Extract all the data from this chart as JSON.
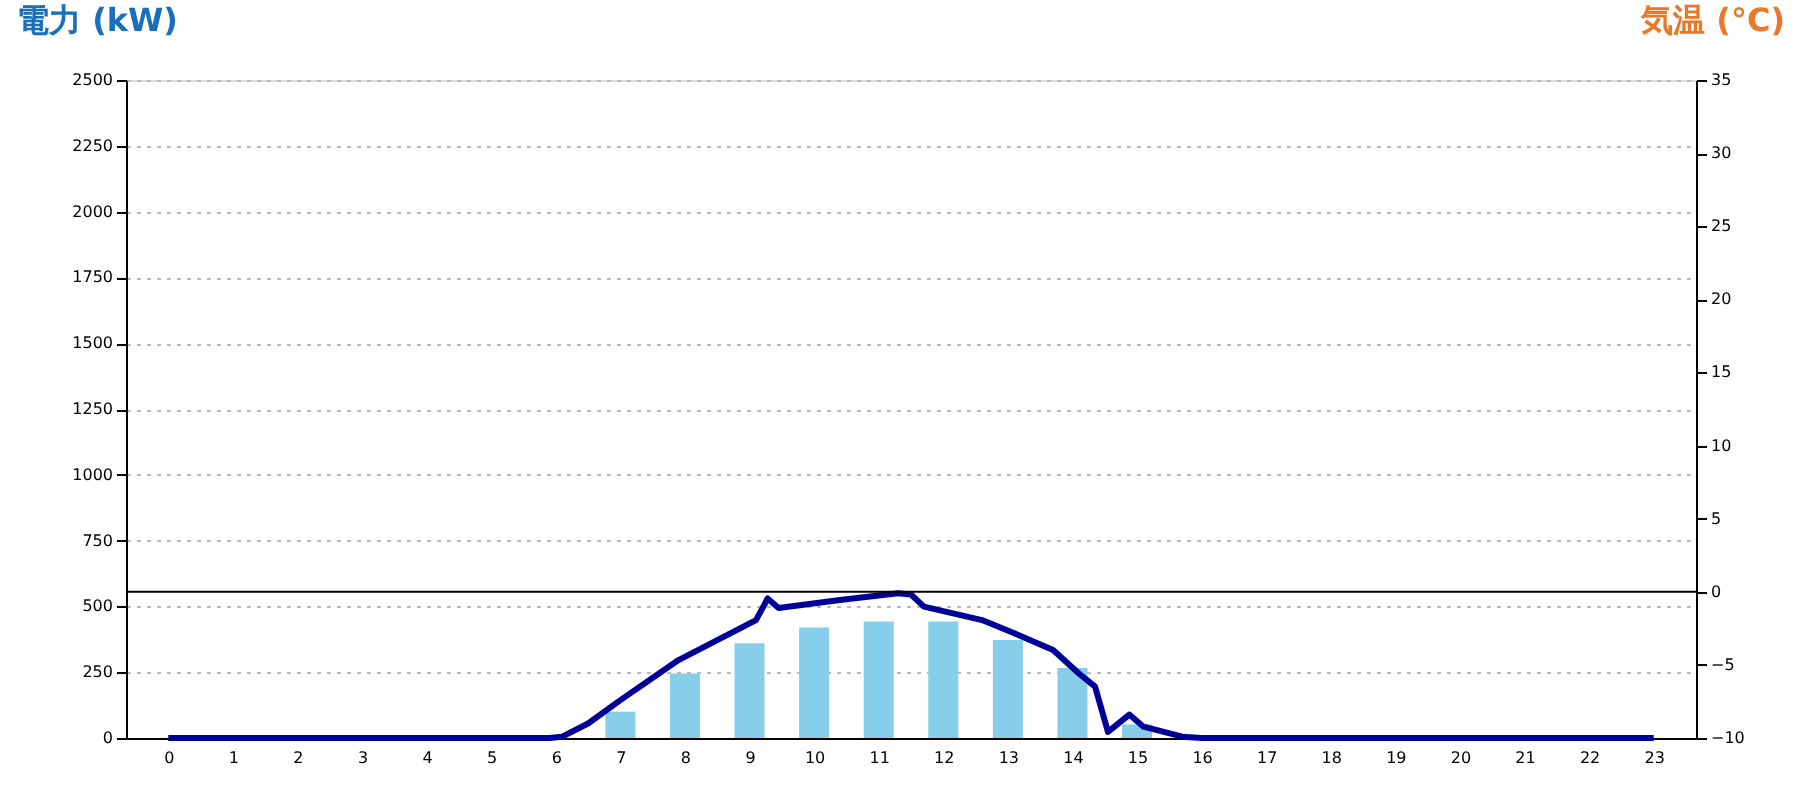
{
  "chart_data": {
    "type": "bar",
    "ylabel": "電力 (kW)",
    "y2label": "気温 (°C)",
    "xlim": [
      -0.5,
      23.5
    ],
    "xticks": [
      0,
      1,
      2,
      3,
      4,
      5,
      6,
      7,
      8,
      9,
      10,
      11,
      12,
      13,
      14,
      15,
      16,
      17,
      18,
      19,
      20,
      21,
      22,
      23
    ],
    "ylim": [
      0,
      2500
    ],
    "yticks": [
      0,
      250,
      500,
      750,
      1000,
      1250,
      1500,
      1750,
      2000,
      2250,
      2500
    ],
    "y2lim": [
      -10,
      35
    ],
    "y2ticks": [
      -10,
      -5,
      0,
      5,
      10,
      15,
      20,
      25,
      30,
      35
    ],
    "grid": "y",
    "series": [
      {
        "color": "#87ceeb",
        "x": [
          0,
          1,
          2,
          3,
          4,
          5,
          6,
          7,
          8,
          9,
          10,
          11,
          12,
          13,
          14,
          15,
          16,
          17,
          18,
          19,
          20,
          21,
          22,
          23
        ],
        "values": [
          0,
          0,
          0,
          0,
          0,
          0,
          0,
          100,
          245,
          360,
          420,
          443,
          443,
          372,
          266,
          51,
          5,
          0,
          0,
          0,
          0,
          0,
          0,
          0
        ]
      },
      {
        "type": "line",
        "color": "#000099",
        "line_style": "solid",
        "marker": "none",
        "x": [
          0,
          5.9,
          6.1,
          6.5,
          7,
          7.9,
          8.5,
          9.1,
          9.28,
          9.45,
          10.4,
          11.3,
          11.5,
          11.7,
          12.6,
          13.1,
          13.7,
          14.1,
          14.35,
          14.55,
          14.88,
          15.1,
          15.7,
          16,
          23
        ],
        "values": [
          0,
          0,
          5,
          55,
          144,
          296,
          372,
          448,
          530,
          494,
          524,
          550,
          545,
          499,
          448,
          398,
          334,
          245,
          195,
          23,
          89,
          43,
          5,
          0,
          0
        ]
      }
    ],
    "ref_lines": [
      {
        "axis": "y2",
        "value": 0,
        "color": "#000000"
      }
    ]
  }
}
